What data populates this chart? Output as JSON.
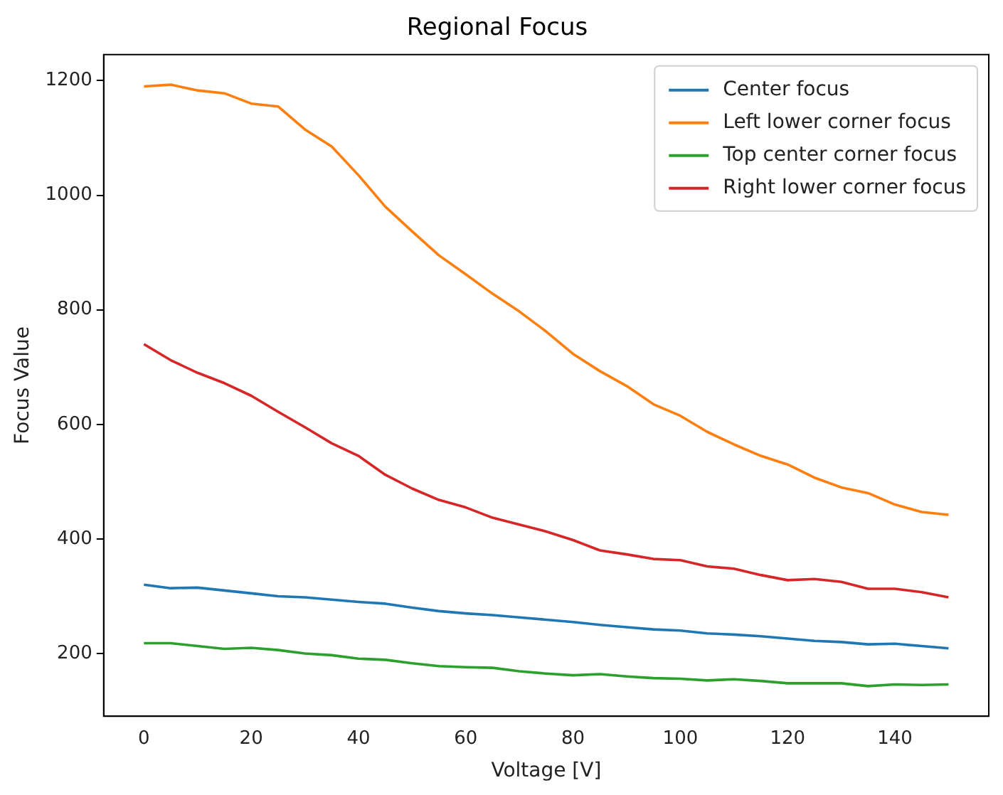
{
  "chart_data": {
    "type": "line",
    "title": "Regional Focus",
    "xlabel": "Voltage [V]",
    "ylabel": "Focus Value",
    "x": [
      0,
      5,
      10,
      15,
      20,
      25,
      30,
      35,
      40,
      45,
      50,
      55,
      60,
      65,
      70,
      75,
      80,
      85,
      90,
      95,
      100,
      105,
      110,
      115,
      120,
      125,
      130,
      135,
      140,
      145,
      150
    ],
    "series": [
      {
        "name": "Center focus",
        "color": "#1f77b4",
        "values": [
          320,
          314,
          315,
          310,
          305,
          300,
          298,
          294,
          290,
          287,
          280,
          274,
          270,
          267,
          263,
          259,
          255,
          250,
          246,
          242,
          240,
          235,
          233,
          230,
          226,
          222,
          220,
          216,
          217,
          213,
          209
        ]
      },
      {
        "name": "Left lower corner focus",
        "color": "#ff7f0e",
        "values": [
          1190,
          1193,
          1183,
          1178,
          1160,
          1155,
          1115,
          1085,
          1035,
          980,
          937,
          895,
          862,
          828,
          797,
          762,
          723,
          693,
          667,
          635,
          615,
          587,
          565,
          545,
          530,
          507,
          490,
          480,
          460,
          447,
          442
        ]
      },
      {
        "name": "Top center corner focus",
        "color": "#2ca02c",
        "values": [
          218,
          218,
          213,
          208,
          210,
          206,
          200,
          197,
          191,
          189,
          183,
          178,
          176,
          175,
          169,
          165,
          162,
          164,
          160,
          157,
          156,
          153,
          155,
          152,
          148,
          148,
          148,
          143,
          146,
          145,
          146
        ]
      },
      {
        "name": "Right lower corner focus",
        "color": "#d62728",
        "values": [
          740,
          712,
          690,
          672,
          650,
          622,
          595,
          567,
          545,
          512,
          488,
          468,
          455,
          437,
          425,
          413,
          398,
          380,
          373,
          365,
          363,
          352,
          348,
          337,
          328,
          330,
          325,
          313,
          313,
          307,
          298
        ]
      }
    ],
    "xlim": [
      -7.5,
      157.5
    ],
    "xticks": [
      0,
      20,
      40,
      60,
      80,
      100,
      120,
      140
    ],
    "ylim": [
      90.5,
      1245.5
    ],
    "yticks": [
      200,
      400,
      600,
      800,
      1000,
      1200
    ],
    "grid": false,
    "legend": "top right",
    "marker": "none",
    "line_style": "solid"
  }
}
